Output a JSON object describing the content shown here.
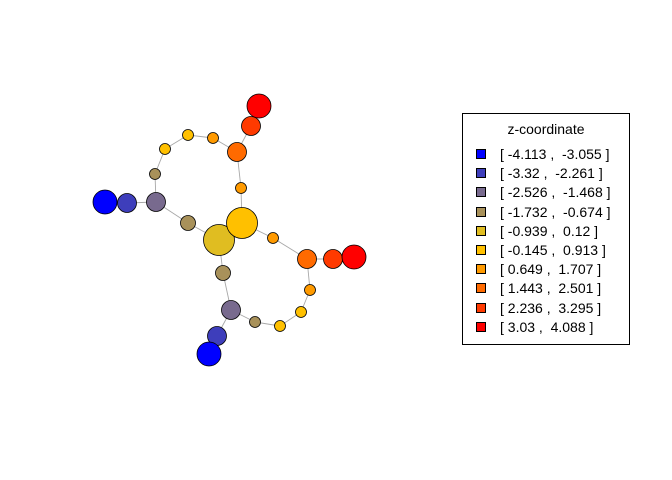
{
  "legend": {
    "title": "z-coordinate",
    "entries": [
      {
        "label": "[ -4.113 ,  -3.055 ]",
        "color": "#0000FF"
      },
      {
        "label": "[ -3.32 ,  -2.261 ]",
        "color": "#3E3EBB"
      },
      {
        "label": "[ -2.526 ,  -1.468 ]",
        "color": "#786A8E"
      },
      {
        "label": "[ -1.732 ,  -0.674 ]",
        "color": "#A8915A"
      },
      {
        "label": "[ -0.939 ,  0.12 ]",
        "color": "#E0BD21"
      },
      {
        "label": "[ -0.145 ,  0.913 ]",
        "color": "#FFC000"
      },
      {
        "label": "[ 0.649 ,  1.707 ]",
        "color": "#FF9A00"
      },
      {
        "label": "[ 1.443 ,  2.501 ]",
        "color": "#FF6A00"
      },
      {
        "label": "[ 2.236 ,  3.295 ]",
        "color": "#FF3A00"
      },
      {
        "label": "[ 3.03 ,  4.088 ]",
        "color": "#FF0000"
      }
    ]
  },
  "graph": {
    "nodes": [
      {
        "id": 0,
        "cls": 4,
        "size": "xl"
      },
      {
        "id": 1,
        "cls": 5,
        "size": "xl"
      },
      {
        "id": 2,
        "cls": 3,
        "size": "s"
      },
      {
        "id": 3,
        "cls": 2,
        "size": "m"
      },
      {
        "id": 4,
        "cls": 1,
        "size": "m"
      },
      {
        "id": 5,
        "cls": 0,
        "size": "l"
      },
      {
        "id": 6,
        "cls": 3,
        "size": "xs"
      },
      {
        "id": 7,
        "cls": 5,
        "size": "xs"
      },
      {
        "id": 8,
        "cls": 5,
        "size": "xs"
      },
      {
        "id": 9,
        "cls": 6,
        "size": "xs"
      },
      {
        "id": 10,
        "cls": 7,
        "size": "m"
      },
      {
        "id": 11,
        "cls": 8,
        "size": "m"
      },
      {
        "id": 12,
        "cls": 9,
        "size": "l"
      },
      {
        "id": 13,
        "cls": 6,
        "size": "xs"
      },
      {
        "id": 14,
        "cls": 6,
        "size": "xs"
      },
      {
        "id": 15,
        "cls": 7,
        "size": "m"
      },
      {
        "id": 16,
        "cls": 8,
        "size": "m"
      },
      {
        "id": 17,
        "cls": 9,
        "size": "l"
      },
      {
        "id": 18,
        "cls": 6,
        "size": "xs"
      },
      {
        "id": 19,
        "cls": 5,
        "size": "xs"
      },
      {
        "id": 20,
        "cls": 5,
        "size": "xs"
      },
      {
        "id": 21,
        "cls": 3,
        "size": "xs"
      },
      {
        "id": 22,
        "cls": 2,
        "size": "m"
      },
      {
        "id": 23,
        "cls": 1,
        "size": "m"
      },
      {
        "id": 24,
        "cls": 0,
        "size": "l"
      },
      {
        "id": 25,
        "cls": 3,
        "size": "s"
      }
    ],
    "edges": [
      [
        0,
        1
      ],
      [
        0,
        2
      ],
      [
        2,
        3
      ],
      [
        3,
        4
      ],
      [
        4,
        5
      ],
      [
        3,
        6
      ],
      [
        6,
        7
      ],
      [
        7,
        8
      ],
      [
        8,
        9
      ],
      [
        9,
        10
      ],
      [
        10,
        11
      ],
      [
        11,
        12
      ],
      [
        10,
        13
      ],
      [
        13,
        1
      ],
      [
        1,
        14
      ],
      [
        14,
        15
      ],
      [
        15,
        16
      ],
      [
        16,
        17
      ],
      [
        15,
        18
      ],
      [
        18,
        19
      ],
      [
        19,
        20
      ],
      [
        20,
        21
      ],
      [
        21,
        22
      ],
      [
        22,
        23
      ],
      [
        23,
        24
      ],
      [
        22,
        25
      ],
      [
        25,
        0
      ]
    ]
  }
}
